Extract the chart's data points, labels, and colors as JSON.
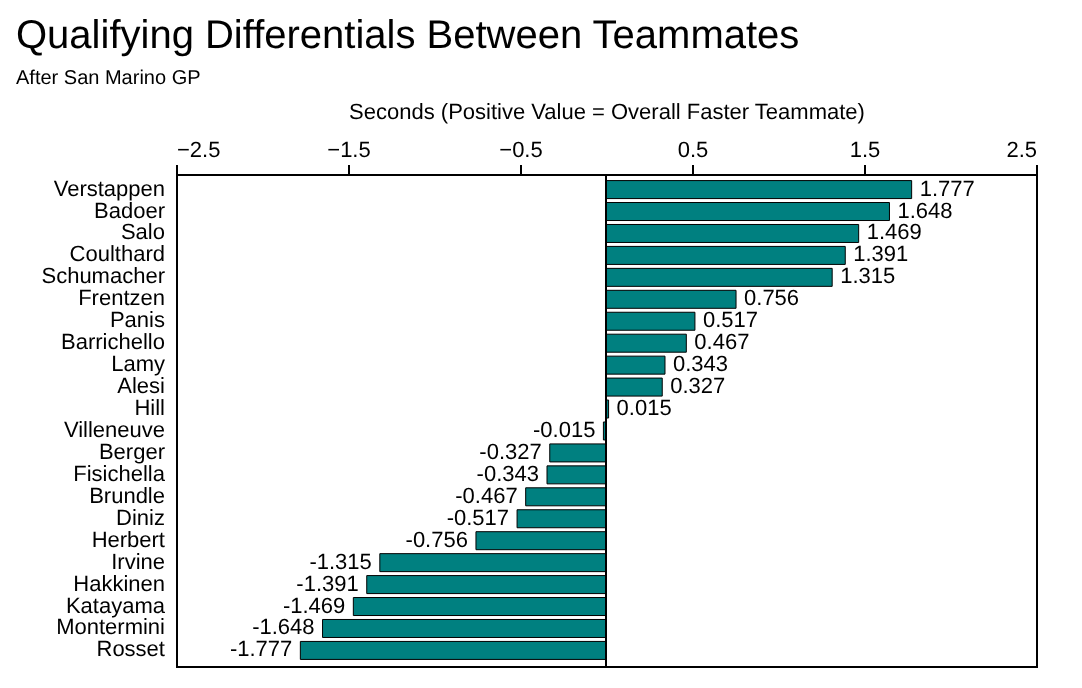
{
  "chart_data": {
    "type": "bar",
    "orientation": "horizontal",
    "title": "Qualifying Differentials Between Teammates",
    "subtitle": "After San Marino GP",
    "xlabel": "Seconds (Positive Value = Overall Faster Teammate)",
    "categories": [
      "Verstappen",
      "Badoer",
      "Salo",
      "Coulthard",
      "Schumacher",
      "Frentzen",
      "Panis",
      "Barrichello",
      "Lamy",
      "Alesi",
      "Hill",
      "Villeneuve",
      "Berger",
      "Fisichella",
      "Brundle",
      "Diniz",
      "Herbert",
      "Irvine",
      "Hakkinen",
      "Katayama",
      "Montermini",
      "Rosset"
    ],
    "values": [
      1.777,
      1.648,
      1.469,
      1.391,
      1.315,
      0.756,
      0.517,
      0.467,
      0.343,
      0.327,
      0.015,
      -0.015,
      -0.327,
      -0.343,
      -0.467,
      -0.517,
      -0.756,
      -1.315,
      -1.391,
      -1.469,
      -1.648,
      -1.777
    ],
    "color": "#008080",
    "xlim": [
      -2.5,
      2.5
    ],
    "xticks": [
      -2.5,
      -1.5,
      -0.5,
      0.5,
      1.5,
      2.5
    ],
    "grid": false,
    "data_labels": true,
    "ref_lines": [
      {
        "axis": "x",
        "value": 0,
        "color": "#000000"
      }
    ]
  }
}
